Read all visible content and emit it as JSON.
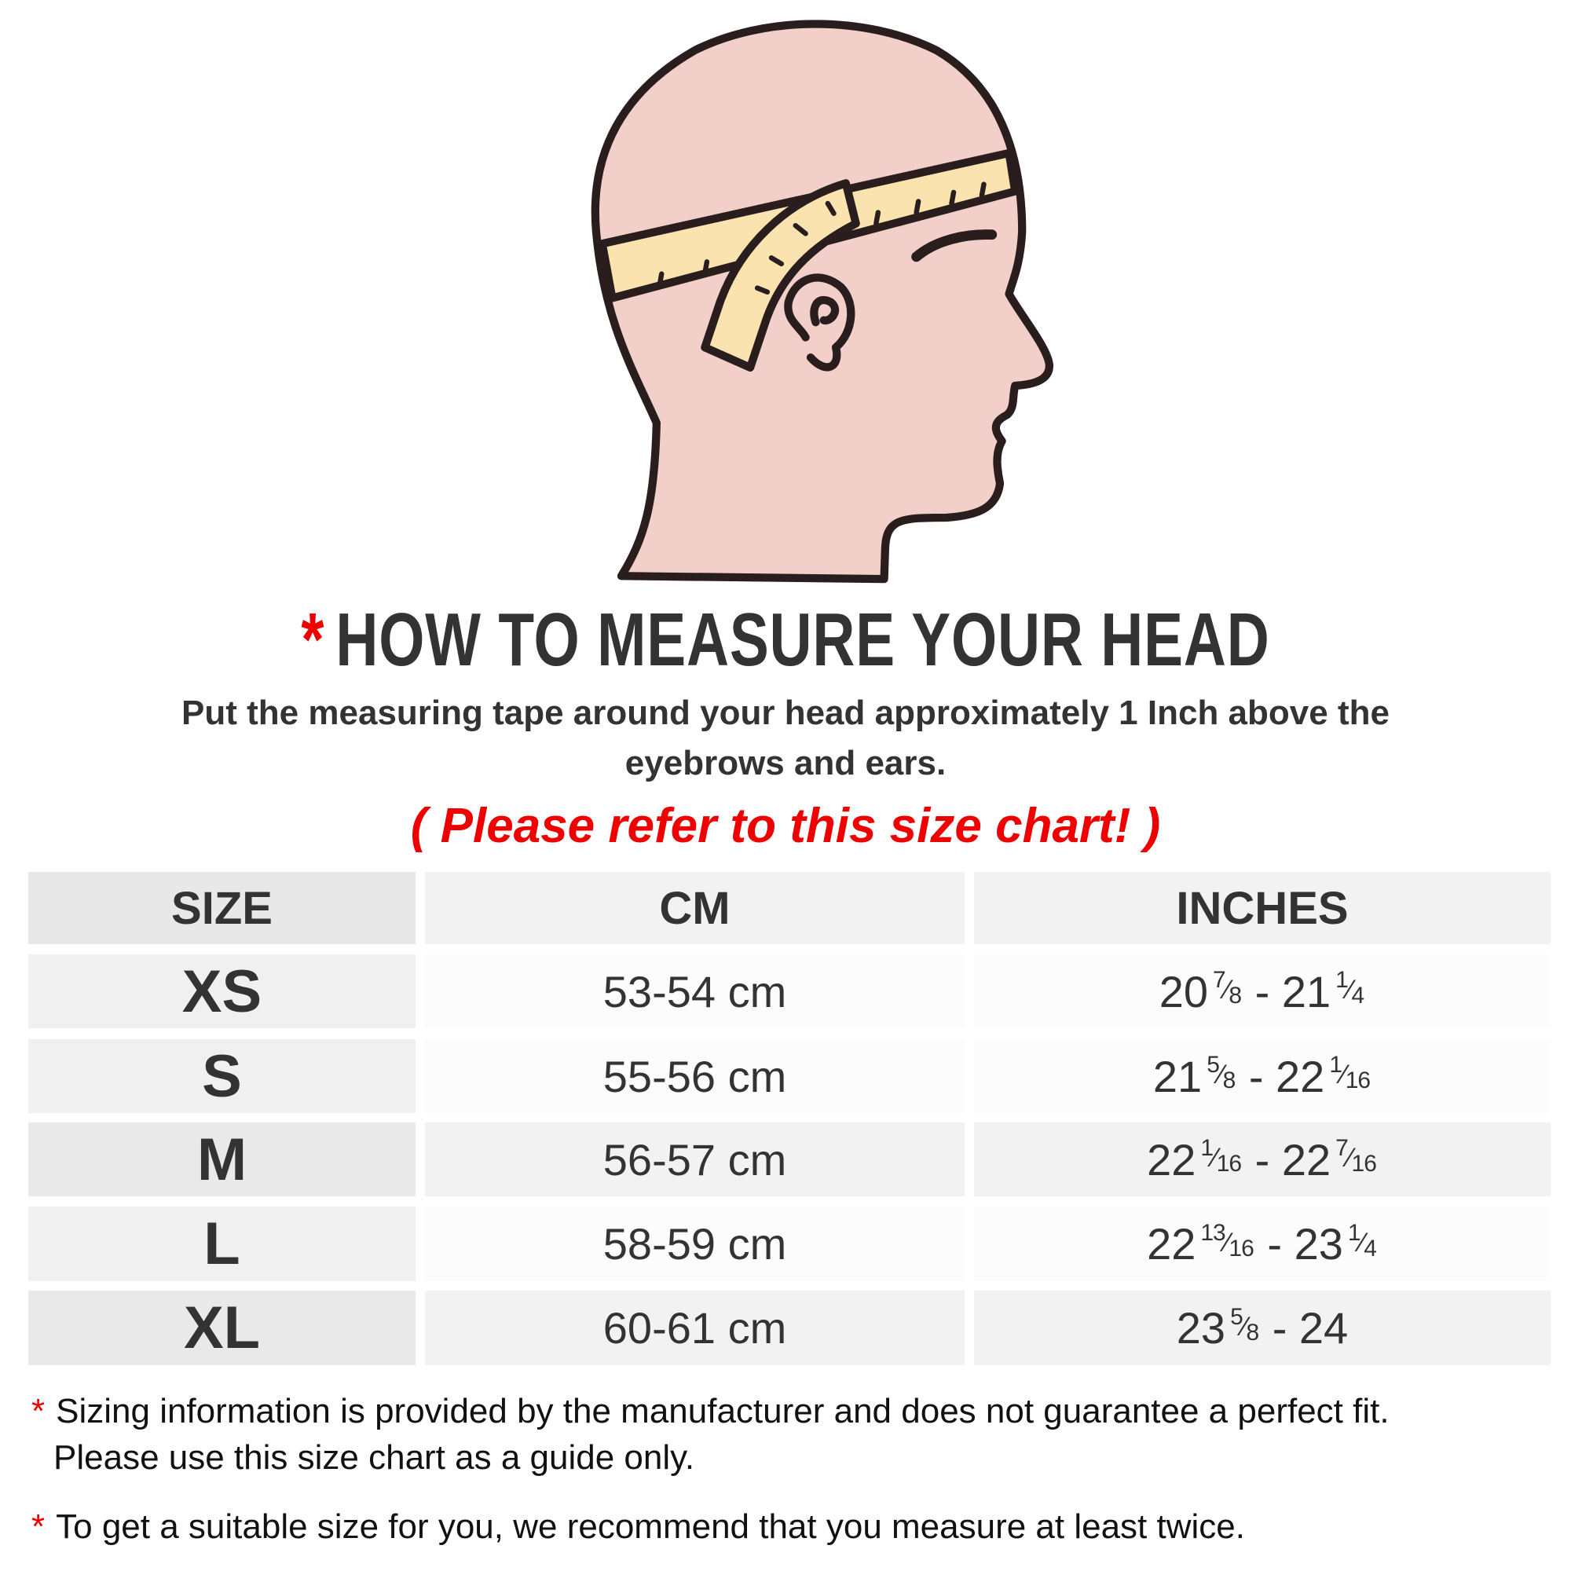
{
  "heading": {
    "star": "*",
    "title": "HOW TO MEASURE YOUR HEAD"
  },
  "instruction": "Put the measuring tape around your head approximately 1 Inch above the eyebrows and ears.",
  "refer_note": "( Please refer to this size chart! )",
  "colors": {
    "accent_red": "#e00000",
    "text": "#333333",
    "skin": "#f2cfc8",
    "tape": "#fbe3b0",
    "outline": "#2a1d1d"
  },
  "table": {
    "headers": [
      "SIZE",
      "CM",
      "INCHES"
    ],
    "rows": [
      {
        "size": "XS",
        "cm": "53-54 cm",
        "inches": [
          {
            "w": "20",
            "n": "7",
            "d": "8"
          },
          {
            "w": "21",
            "n": "1",
            "d": "4"
          }
        ]
      },
      {
        "size": "S",
        "cm": "55-56 cm",
        "inches": [
          {
            "w": "21",
            "n": "5",
            "d": "8"
          },
          {
            "w": "22",
            "n": "1",
            "d": "16"
          }
        ]
      },
      {
        "size": "M",
        "cm": "56-57 cm",
        "inches": [
          {
            "w": "22",
            "n": "1",
            "d": "16"
          },
          {
            "w": "22",
            "n": "7",
            "d": "16"
          }
        ]
      },
      {
        "size": "L",
        "cm": "58-59 cm",
        "inches": [
          {
            "w": "22",
            "n": "13",
            "d": "16"
          },
          {
            "w": "23",
            "n": "1",
            "d": "4"
          }
        ]
      },
      {
        "size": "XL",
        "cm": "60-61 cm",
        "inches": [
          {
            "w": "23",
            "n": "5",
            "d": "8"
          },
          {
            "w": "24"
          }
        ]
      }
    ]
  },
  "notes": [
    {
      "star": "*",
      "lines": [
        "Sizing information is provided by the manufacturer and does not guarantee a perfect fit.",
        "Please use this size chart as a guide only."
      ]
    },
    {
      "star": "*",
      "lines": [
        "To get a suitable size for you, we recommend that you measure at least twice."
      ]
    }
  ]
}
